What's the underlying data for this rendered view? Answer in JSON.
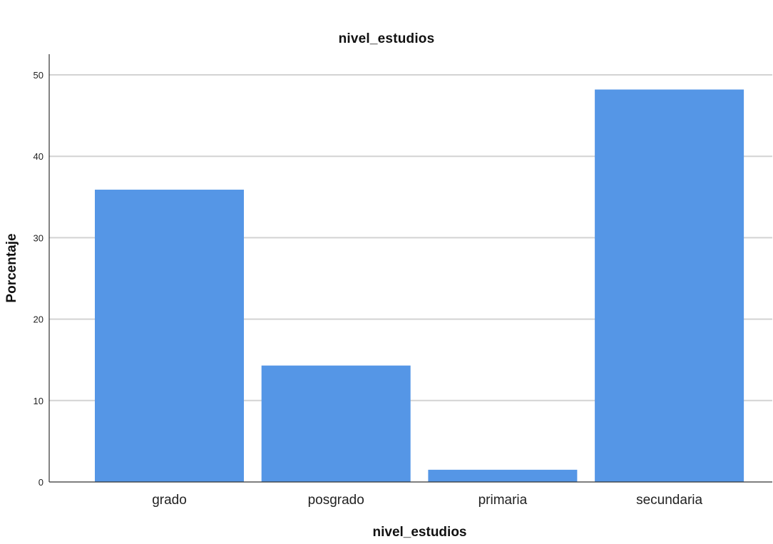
{
  "chart_data": {
    "type": "bar",
    "title": "nivel_estudios",
    "xlabel": "nivel_estudios",
    "ylabel": "Porcentaje",
    "categories": [
      "grado",
      "posgrado",
      "primaria",
      "secundaria"
    ],
    "values": [
      35.9,
      14.3,
      1.5,
      48.2
    ],
    "ylim": [
      0,
      50
    ],
    "yticks": [
      0,
      10,
      20,
      30,
      40,
      50
    ],
    "grid": true,
    "bar_color": "#5596E6",
    "grid_color": "#D3D3D3",
    "axis_color": "#333333"
  }
}
